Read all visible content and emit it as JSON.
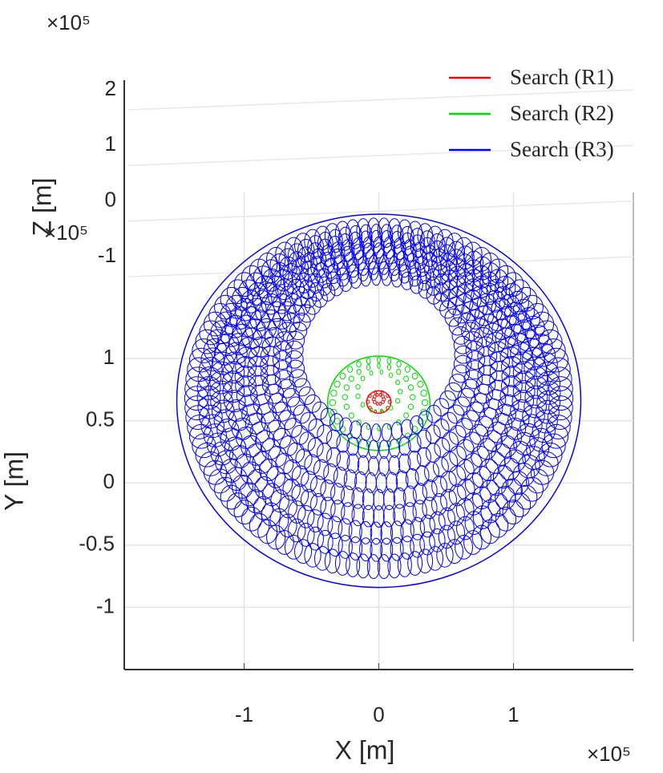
{
  "chart_data": {
    "type": "sphere-wireframe",
    "x_label": "X [m]",
    "y_label": "Y [m]",
    "z_label": "Z [m]",
    "x_multiplier": "×10⁵",
    "y_multiplier": "×10⁵",
    "z_multiplier": "×10⁵",
    "xlim": [
      -1.89,
      1.89
    ],
    "xticks": [
      -1,
      0,
      1
    ],
    "ylim": [
      -1.5,
      1.4
    ],
    "yticks": [
      -1,
      -0.5,
      0,
      0.5,
      1
    ],
    "zlim": [
      -1.3,
      2.1
    ],
    "zticks": [
      -1,
      0,
      1,
      2
    ],
    "grid": true,
    "legend": "top-right",
    "series": [
      {
        "name": "Search (R1)",
        "color": "#ff0000",
        "center": [
          0,
          0.65
        ],
        "radius": 0.09
      },
      {
        "name": "Search (R2)",
        "color": "#00dd00",
        "center": [
          0,
          0.64
        ],
        "radius": 0.38
      },
      {
        "name": "Search (R3)",
        "color": "#0000ff",
        "center": [
          0,
          0.66
        ],
        "radius": 1.5
      }
    ]
  }
}
